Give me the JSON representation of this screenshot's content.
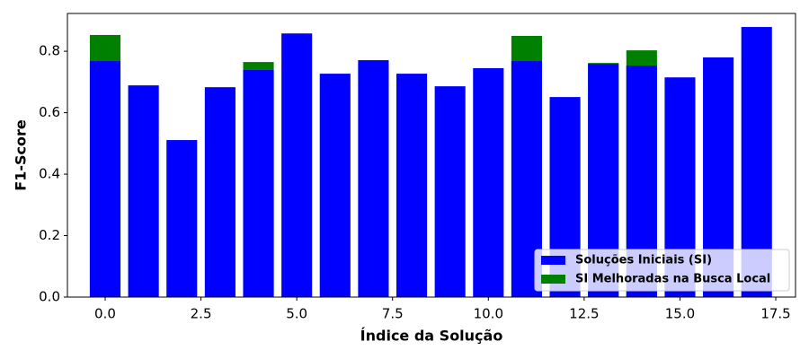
{
  "chart_data": {
    "type": "bar",
    "xlabel": "Índice da Solução",
    "ylabel": "F1-Score",
    "x": [
      0,
      1,
      2,
      3,
      4,
      5,
      6,
      7,
      8,
      9,
      10,
      11,
      12,
      13,
      14,
      15,
      16,
      17
    ],
    "series": [
      {
        "name": "SI Melhoradas na Busca Local",
        "color": "#008000",
        "values": [
          0.853,
          null,
          null,
          null,
          0.765,
          null,
          null,
          null,
          null,
          null,
          null,
          0.85,
          null,
          0.762,
          0.803,
          null,
          null,
          null
        ]
      },
      {
        "name": "Soluções Iniciais (SI)",
        "color": "#0000ff",
        "values": [
          0.768,
          0.689,
          0.511,
          0.683,
          0.739,
          0.858,
          0.727,
          0.771,
          0.727,
          0.686,
          0.745,
          0.768,
          0.651,
          0.759,
          0.753,
          0.715,
          0.78,
          0.879
        ]
      }
    ],
    "legend_order": [
      1,
      0
    ],
    "legend_position": "lower right",
    "xlim": [
      -0.985,
      18.015
    ],
    "ylim": [
      0,
      0.923
    ],
    "xticks": [
      {
        "value": 0,
        "label": "0.0"
      },
      {
        "value": 2.5,
        "label": "2.5"
      },
      {
        "value": 5,
        "label": "5.0"
      },
      {
        "value": 7.5,
        "label": "7.5"
      },
      {
        "value": 10,
        "label": "10.0"
      },
      {
        "value": 12.5,
        "label": "12.5"
      },
      {
        "value": 15,
        "label": "15.0"
      },
      {
        "value": 17.5,
        "label": "17.5"
      }
    ],
    "yticks": [
      {
        "value": 0,
        "label": "0.0"
      },
      {
        "value": 0.2,
        "label": "0.2"
      },
      {
        "value": 0.4,
        "label": "0.4"
      },
      {
        "value": 0.6,
        "label": "0.6"
      },
      {
        "value": 0.8,
        "label": "0.8"
      }
    ],
    "bar_width": 0.8
  }
}
